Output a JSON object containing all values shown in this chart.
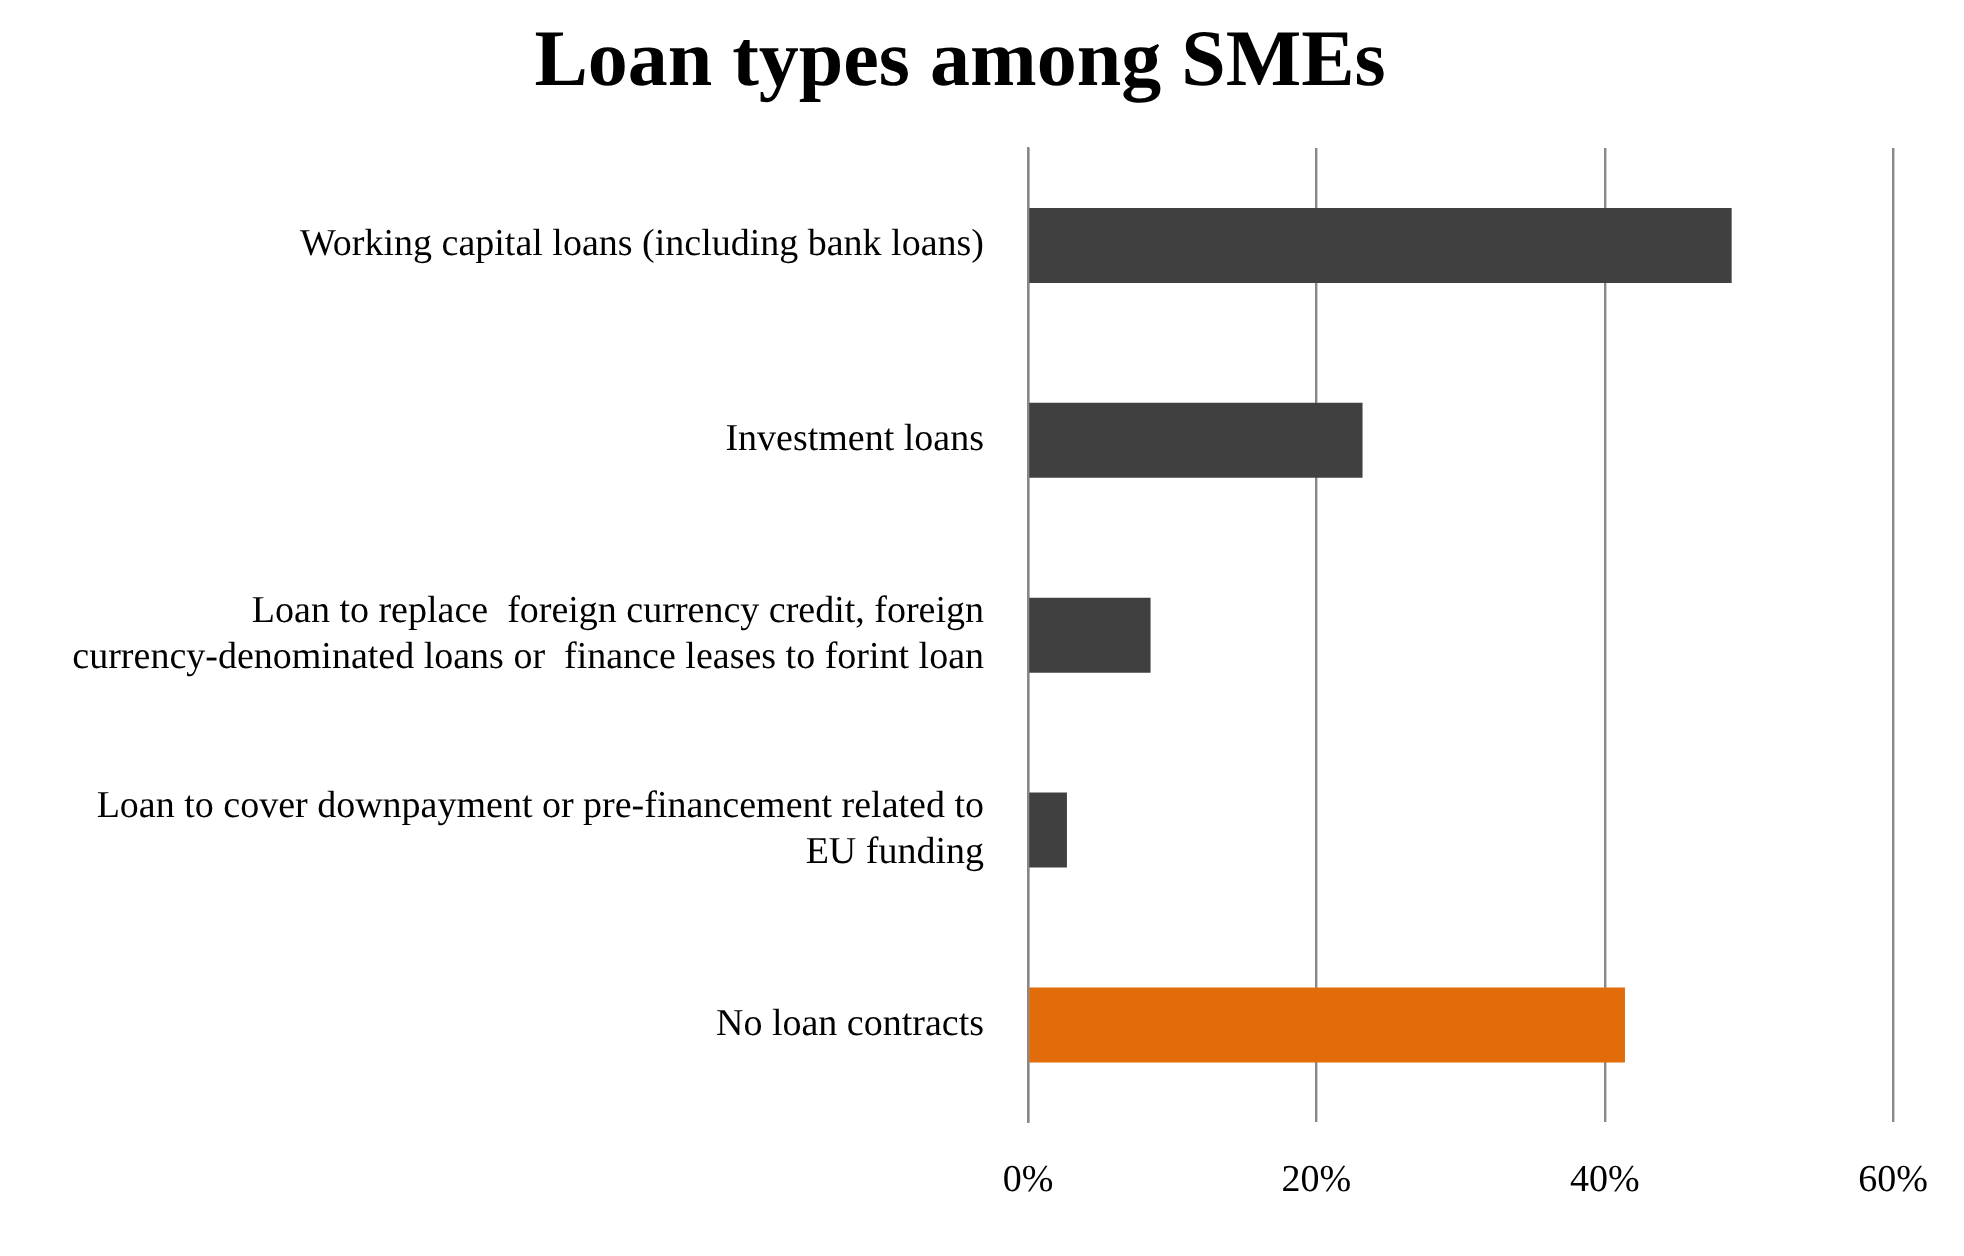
{
  "chart_data": {
    "type": "bar",
    "orientation": "horizontal",
    "title": "Loan types among SMEs",
    "categories": [
      "Working capital loans (including bank loans)",
      "Investment loans",
      "Loan to replace  foreign currency credit, foreign currency-denominated loans or  finance leases to forint loan",
      "Loan to cover downpayment or pre-financement related to EU funding",
      "No loan contracts"
    ],
    "values": [
      48.8,
      23.2,
      8.5,
      2.7,
      41.4
    ],
    "colors": [
      "#404040",
      "#404040",
      "#404040",
      "#404040",
      "#e36c0a"
    ],
    "xlim": [
      0,
      60
    ],
    "xticks": [
      {
        "value": 0,
        "label": "0%"
      },
      {
        "value": 20,
        "label": "20%"
      },
      {
        "value": 40,
        "label": "40%"
      },
      {
        "value": 60,
        "label": "60%"
      }
    ],
    "grid": "x",
    "legend": false
  }
}
